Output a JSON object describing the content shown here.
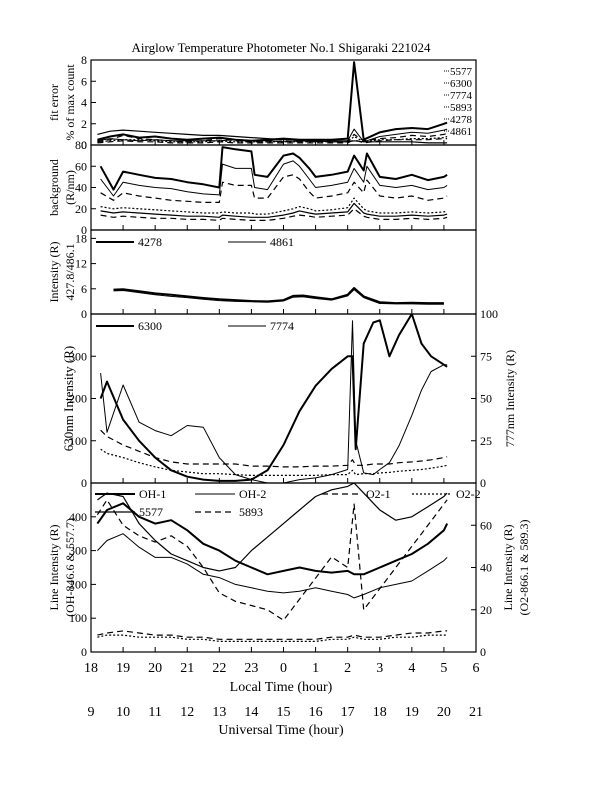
{
  "title": "Airglow Temperature Photometer No.1  Shigaraki  221024",
  "x_axes": {
    "top_label": "Local Time (hour)",
    "top_ticks": [
      "18",
      "19",
      "20",
      "21",
      "22",
      "23",
      "0",
      "1",
      "2",
      "3",
      "4",
      "5",
      "6"
    ],
    "bottom_label": "Universal Time (hour)",
    "bottom_ticks": [
      "9",
      "10",
      "11",
      "12",
      "13",
      "14",
      "15",
      "16",
      "17",
      "18",
      "19",
      "20",
      "21"
    ]
  },
  "chart_data": [
    {
      "type": "line",
      "panel": "fit-error",
      "ylabel": "fit error\n% of max count",
      "ylim": [
        0,
        8
      ],
      "yticks": [
        0,
        2,
        4,
        6,
        8
      ],
      "legend": [
        "5577",
        "6300",
        "7774",
        "5893",
        "4278",
        "4861"
      ],
      "x": [
        9.2,
        9.6,
        10.0,
        10.5,
        11.0,
        11.5,
        12.0,
        12.5,
        13.0,
        13.5,
        14.0,
        14.5,
        15.0,
        15.5,
        16.0,
        16.5,
        17.0,
        17.2,
        17.5,
        18.0,
        18.5,
        19.0,
        19.5,
        20.0,
        20.1
      ],
      "series": [
        {
          "name": "5577",
          "values": [
            0.5,
            0.8,
            1.0,
            0.7,
            0.8,
            0.6,
            0.5,
            0.6,
            0.7,
            0.5,
            0.4,
            0.5,
            0.6,
            0.5,
            0.5,
            0.5,
            0.6,
            7.8,
            0.5,
            1.2,
            1.5,
            1.6,
            1.5,
            2.0,
            2.1
          ]
        },
        {
          "name": "6300",
          "values": [
            0.4,
            0.6,
            0.5,
            0.4,
            0.5,
            0.4,
            0.4,
            0.4,
            0.4,
            0.5,
            0.4,
            0.4,
            0.3,
            0.4,
            0.3,
            0.4,
            0.4,
            1.5,
            0.3,
            0.8,
            1.0,
            1.2,
            1.1,
            1.4,
            1.5
          ]
        },
        {
          "name": "7774",
          "values": [
            0.3,
            0.5,
            0.9,
            0.6,
            0.5,
            0.4,
            0.3,
            0.4,
            0.6,
            0.4,
            0.3,
            0.3,
            0.4,
            0.3,
            0.4,
            0.3,
            0.3,
            1.0,
            0.4,
            0.6,
            0.7,
            0.9,
            0.8,
            1.0,
            1.1
          ]
        },
        {
          "name": "5893",
          "values": [
            0.3,
            0.4,
            0.5,
            0.5,
            0.4,
            0.3,
            0.3,
            0.3,
            0.4,
            0.3,
            0.3,
            0.3,
            0.3,
            0.3,
            0.3,
            0.3,
            0.3,
            0.8,
            0.3,
            0.5,
            0.5,
            0.6,
            0.6,
            0.7,
            0.8
          ]
        },
        {
          "name": "4278",
          "values": [
            1.0,
            1.3,
            1.4,
            1.3,
            1.2,
            1.1,
            1.0,
            0.9,
            0.9,
            0.8,
            0.7,
            0.6,
            0.5,
            0.5,
            0.4,
            0.3,
            0.3,
            0.4,
            0.3,
            0.3,
            0.3,
            0.3,
            0.2,
            0.2,
            0.2
          ]
        },
        {
          "name": "4861",
          "values": [
            0.2,
            0.3,
            0.4,
            0.3,
            0.3,
            0.2,
            0.2,
            0.2,
            0.3,
            0.2,
            0.2,
            0.2,
            0.2,
            0.2,
            0.2,
            0.2,
            0.2,
            0.5,
            0.2,
            0.4,
            0.5,
            0.5,
            0.5,
            0.6,
            0.6
          ]
        }
      ]
    },
    {
      "type": "line",
      "panel": "background",
      "ylabel": "background\n(R/nm)",
      "ylim": [
        0,
        80
      ],
      "yticks": [
        0,
        20,
        40,
        60,
        80
      ],
      "x": [
        9.3,
        9.7,
        10.0,
        10.5,
        11.0,
        11.5,
        12.0,
        12.5,
        13.0,
        13.1,
        13.5,
        14.0,
        14.1,
        14.5,
        15.0,
        15.3,
        15.5,
        15.8,
        16.0,
        16.5,
        17.0,
        17.2,
        17.5,
        17.6,
        18.0,
        18.5,
        19.0,
        19.5,
        20.0,
        20.1
      ],
      "series": [
        {
          "name": "",
          "values": [
            60,
            38,
            55,
            52,
            49,
            48,
            45,
            43,
            40,
            78,
            76,
            74,
            52,
            50,
            70,
            72,
            68,
            58,
            50,
            52,
            55,
            70,
            56,
            72,
            50,
            48,
            52,
            47,
            50,
            52
          ]
        },
        {
          "name": "",
          "values": [
            48,
            32,
            45,
            42,
            40,
            39,
            36,
            34,
            33,
            62,
            58,
            58,
            40,
            38,
            62,
            65,
            60,
            48,
            40,
            42,
            45,
            58,
            45,
            60,
            42,
            40,
            42,
            38,
            40,
            42
          ]
        },
        {
          "name": "",
          "values": [
            35,
            28,
            35,
            32,
            30,
            28,
            27,
            26,
            26,
            45,
            42,
            42,
            30,
            30,
            50,
            52,
            48,
            36,
            30,
            32,
            35,
            45,
            35,
            47,
            32,
            30,
            32,
            28,
            30,
            32
          ]
        },
        {
          "name": "",
          "values": [
            22,
            20,
            21,
            20,
            19,
            18,
            17,
            16,
            16,
            17,
            16,
            16,
            15,
            15,
            18,
            20,
            22,
            20,
            18,
            19,
            21,
            30,
            20,
            18,
            16,
            16,
            17,
            16,
            17,
            18
          ]
        },
        {
          "name": "",
          "values": [
            18,
            16,
            17,
            16,
            15,
            14,
            13,
            13,
            12,
            14,
            13,
            12,
            12,
            12,
            14,
            16,
            18,
            16,
            15,
            16,
            17,
            25,
            16,
            15,
            13,
            13,
            14,
            13,
            14,
            15
          ]
        },
        {
          "name": "",
          "values": [
            14,
            12,
            13,
            12,
            11,
            11,
            10,
            10,
            9,
            11,
            10,
            9,
            9,
            9,
            11,
            13,
            14,
            13,
            12,
            13,
            14,
            20,
            13,
            12,
            10,
            10,
            11,
            10,
            11,
            12
          ]
        }
      ]
    },
    {
      "type": "line",
      "panel": "427.8/486.1",
      "ylabel": "Intensity (R)\n427.8/486.1",
      "ylim": [
        0,
        20
      ],
      "yticks": [
        0,
        6,
        12,
        18
      ],
      "legend": [
        "4278",
        "4861"
      ],
      "x": [
        9.7,
        10.0,
        10.5,
        11.0,
        11.5,
        12.0,
        12.5,
        13.0,
        13.5,
        14.0,
        14.5,
        15.0,
        15.3,
        15.6,
        16.0,
        16.5,
        17.0,
        17.2,
        17.5,
        18.0,
        18.5,
        19.0,
        19.5,
        20.0
      ],
      "series": [
        {
          "name": "4278",
          "values": [
            5.8,
            5.9,
            5.4,
            4.9,
            4.6,
            4.2,
            3.8,
            3.5,
            3.3,
            3.1,
            3.0,
            3.3,
            4.3,
            4.4,
            4.0,
            3.5,
            4.6,
            6.2,
            4.2,
            2.8,
            2.6,
            2.7,
            2.6,
            2.6
          ]
        },
        {
          "name": "4861",
          "values": [
            5.5,
            5.6,
            5.1,
            4.6,
            4.2,
            3.9,
            3.5,
            3.2,
            3.0,
            2.9,
            2.8,
            3.1,
            4.0,
            4.1,
            3.7,
            3.3,
            4.3,
            5.8,
            3.9,
            2.5,
            2.4,
            2.4,
            2.3,
            2.3
          ]
        }
      ]
    },
    {
      "type": "line",
      "panel": "630/777",
      "ylabel": "630nm Intensity (R)",
      "ylabel_right": "777nm Intensity (R)",
      "ylim": [
        0,
        400
      ],
      "yticks": [
        0,
        100,
        200,
        300
      ],
      "ylim_right": [
        0,
        100
      ],
      "yticks_right": [
        0,
        25,
        50,
        75,
        100
      ],
      "legend": [
        "6300",
        "7774"
      ],
      "x_6300": [
        9.3,
        9.5,
        10.0,
        10.5,
        11.0,
        11.5,
        12.0,
        12.5,
        13.0,
        13.5,
        14.0,
        14.5,
        15.0,
        15.5,
        16.0,
        16.5,
        17.0,
        17.15,
        17.25,
        17.5,
        17.8,
        18.0,
        18.3,
        18.6,
        19.0,
        19.3,
        19.6,
        20.0,
        20.1
      ],
      "series": [
        {
          "name": "6300",
          "axis": "left",
          "values": [
            200,
            240,
            150,
            100,
            60,
            30,
            15,
            8,
            5,
            5,
            8,
            30,
            90,
            170,
            230,
            270,
            300,
            300,
            80,
            330,
            380,
            385,
            300,
            350,
            400,
            330,
            300,
            280,
            275
          ]
        },
        {
          "name": "7774",
          "axis": "right",
          "values": [
            65,
            30,
            58,
            36,
            31,
            28,
            34,
            33,
            15,
            5,
            2,
            0,
            0,
            2,
            3,
            5,
            8,
            96,
            25,
            6,
            5,
            8,
            12,
            22,
            40,
            55,
            66,
            70,
            70
          ]
        },
        {
          "name": "",
          "axis": "left",
          "values": [
            125,
            110,
            90,
            75,
            60,
            50,
            45,
            45,
            45,
            45,
            40,
            40,
            38,
            38,
            40,
            40,
            42,
            55,
            42,
            42,
            45,
            45,
            45,
            48,
            50,
            52,
            55,
            60,
            62
          ]
        },
        {
          "name": "",
          "axis": "left",
          "values": [
            80,
            70,
            60,
            48,
            38,
            30,
            26,
            22,
            22,
            20,
            18,
            18,
            18,
            18,
            18,
            20,
            20,
            30,
            20,
            22,
            22,
            24,
            25,
            28,
            30,
            32,
            35,
            40,
            42
          ]
        }
      ]
    },
    {
      "type": "line",
      "panel": "line-intensity",
      "ylabel": "Line Intensity (R)\n(OH-846.6 & 557.7)",
      "ylabel_right": "Line Intensity (R)\n(O2-866.1 & 589.3)",
      "ylim": [
        0,
        500
      ],
      "yticks": [
        0,
        100,
        200,
        300,
        400
      ],
      "ylim_right": [
        0,
        80
      ],
      "yticks_right": [
        0,
        20,
        40,
        60
      ],
      "legend": [
        "OH-1",
        "OH-2",
        "O2-1",
        "O2-2",
        "5577",
        "5893"
      ],
      "x": [
        9.2,
        9.5,
        10.0,
        10.5,
        11.0,
        11.5,
        12.0,
        12.5,
        13.0,
        13.5,
        14.0,
        14.5,
        15.0,
        15.5,
        16.0,
        16.5,
        17.0,
        17.2,
        17.5,
        18.0,
        18.5,
        19.0,
        19.5,
        20.0,
        20.1
      ],
      "series": [
        {
          "name": "OH-1",
          "axis": "left",
          "values": [
            380,
            420,
            440,
            400,
            380,
            390,
            360,
            320,
            300,
            270,
            250,
            230,
            240,
            250,
            240,
            235,
            240,
            230,
            230,
            250,
            270,
            290,
            320,
            360,
            380
          ]
        },
        {
          "name": "OH-2",
          "axis": "left",
          "values": [
            300,
            330,
            350,
            310,
            280,
            280,
            260,
            230,
            220,
            200,
            190,
            180,
            175,
            180,
            190,
            180,
            170,
            160,
            170,
            190,
            200,
            210,
            240,
            270,
            280
          ]
        },
        {
          "name": "O2-1",
          "axis": "right",
          "values": [
            8,
            9,
            10,
            9,
            8,
            8,
            7,
            7,
            6,
            6,
            6,
            6,
            6,
            6,
            6,
            7,
            7,
            8,
            7,
            7,
            8,
            9,
            9,
            10,
            10
          ]
        },
        {
          "name": "O2-2",
          "axis": "right",
          "values": [
            7,
            8,
            8,
            7,
            7,
            7,
            6,
            6,
            5,
            5,
            5,
            5,
            5,
            5,
            5,
            6,
            6,
            7,
            6,
            6,
            7,
            7,
            8,
            8,
            8
          ]
        },
        {
          "name": "5577",
          "axis": "left",
          "values": [
            450,
            470,
            460,
            380,
            330,
            290,
            270,
            250,
            240,
            250,
            300,
            340,
            380,
            420,
            460,
            480,
            490,
            500,
            470,
            420,
            390,
            400,
            430,
            460,
            470
          ]
        },
        {
          "name": "5893",
          "axis": "right",
          "values": [
            65,
            72,
            60,
            55,
            52,
            55,
            50,
            40,
            28,
            24,
            22,
            20,
            15,
            25,
            35,
            45,
            40,
            70,
            20,
            30,
            40,
            50,
            60,
            70,
            72
          ]
        }
      ]
    }
  ]
}
